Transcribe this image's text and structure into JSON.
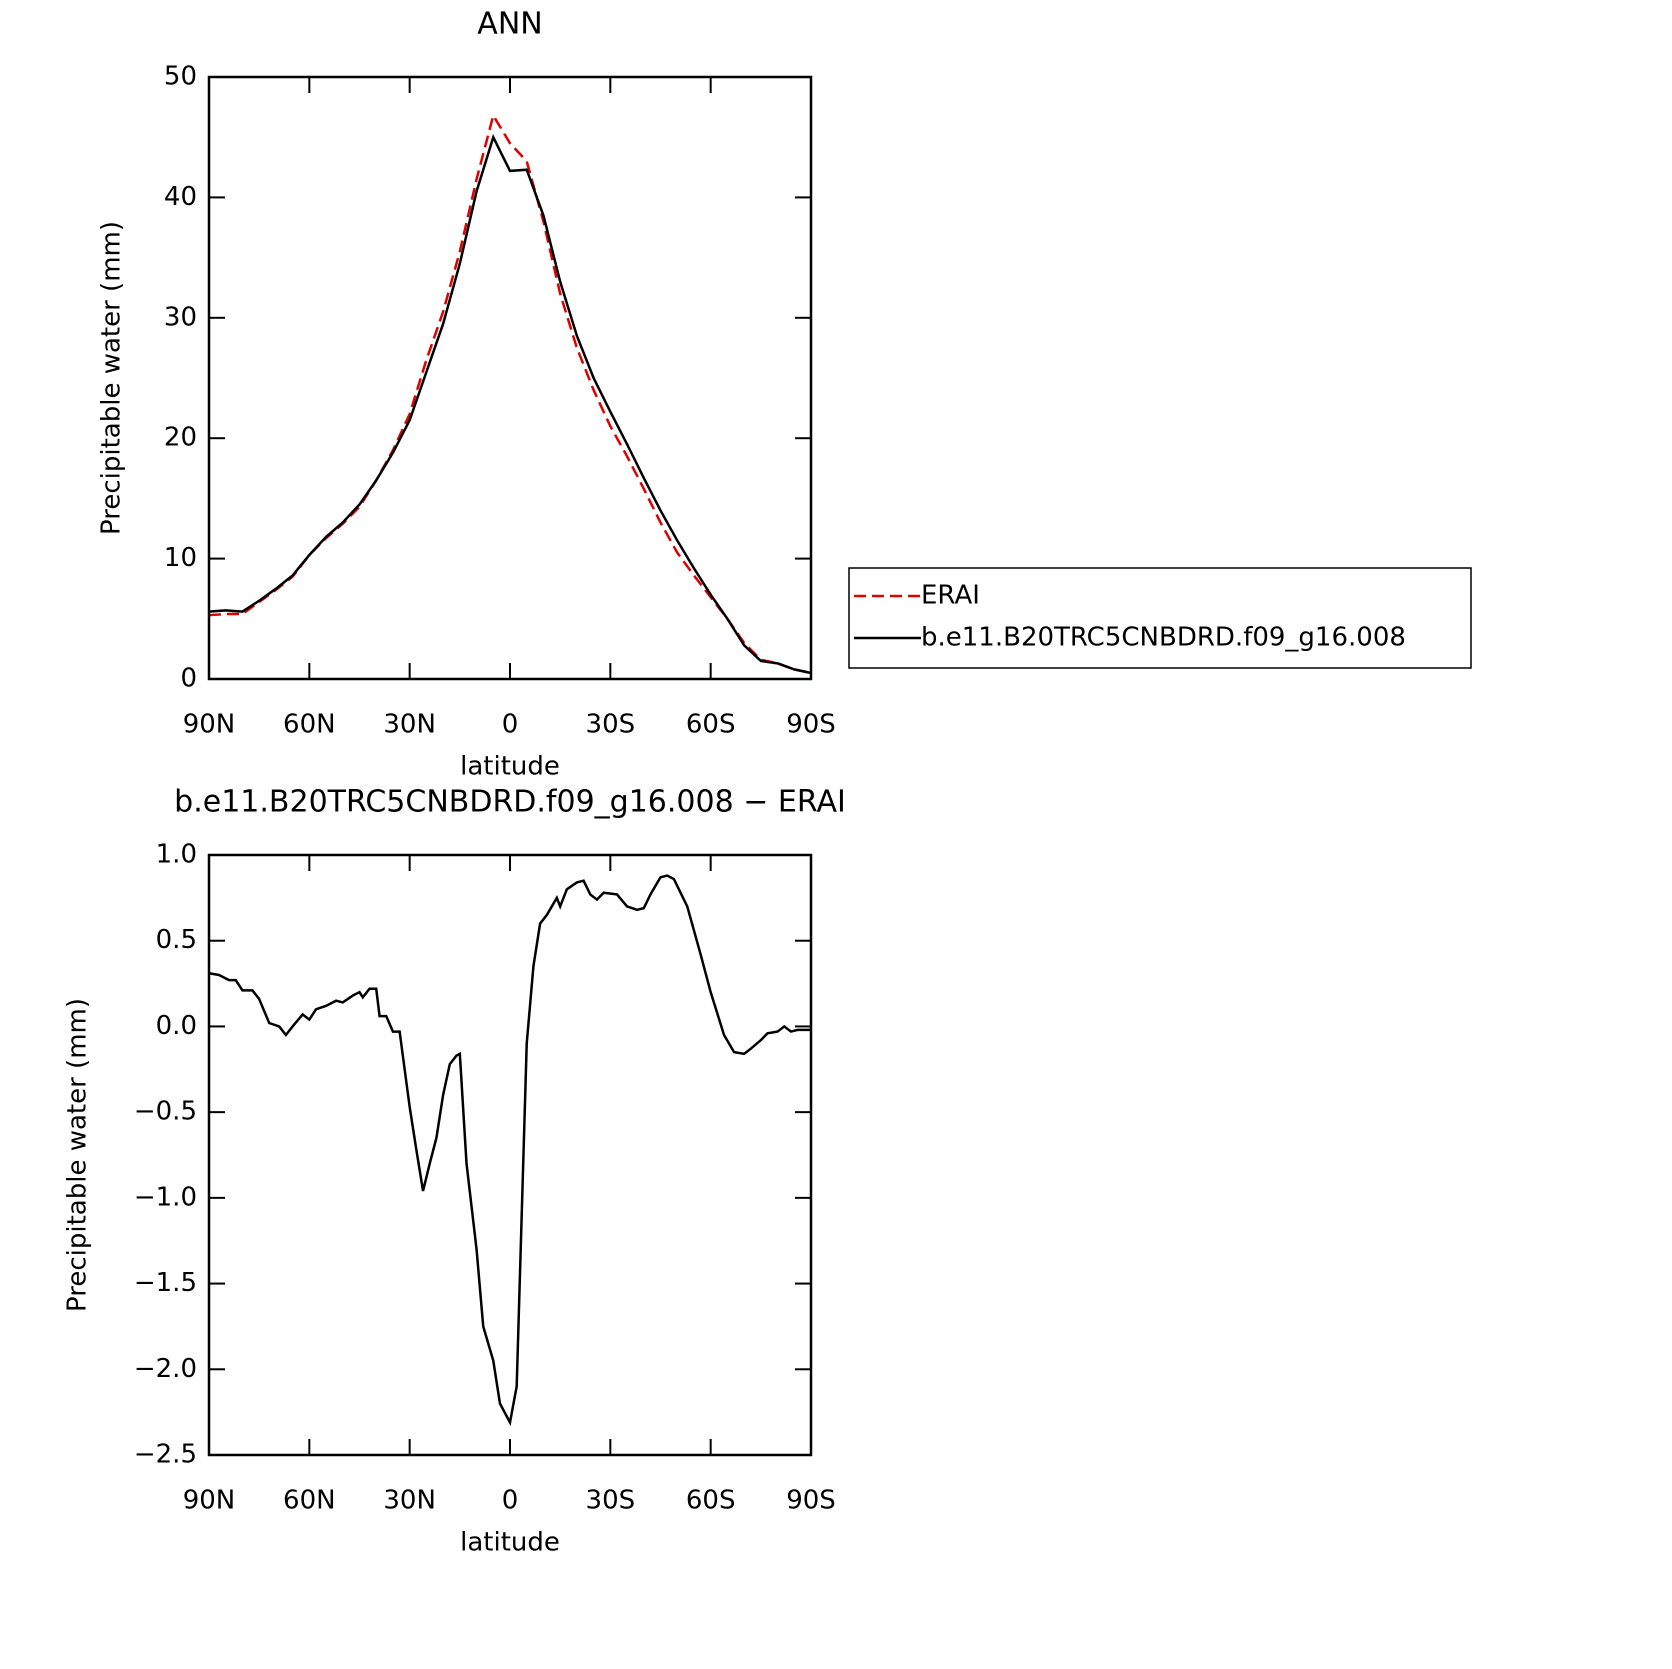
{
  "chart_data": [
    {
      "type": "line",
      "title": "ANN",
      "xlabel": "latitude",
      "ylabel": "Precipitable water (mm)",
      "x": [
        90,
        85,
        80,
        75,
        70,
        65,
        60,
        55,
        50,
        45,
        40,
        35,
        30,
        25,
        20,
        15,
        10,
        5,
        0,
        -5,
        -10,
        -15,
        -20,
        -25,
        -30,
        -35,
        -40,
        -45,
        -50,
        -55,
        -60,
        -65,
        -70,
        -75,
        -80,
        -85,
        -90
      ],
      "series": [
        {
          "name": "ERAI",
          "color": "#e00000",
          "dash": true,
          "values": [
            5.3,
            5.4,
            5.4,
            6.4,
            7.4,
            8.5,
            10.3,
            11.7,
            12.9,
            14.3,
            16.5,
            19.0,
            22.0,
            26.5,
            30.5,
            35.5,
            41.5,
            46.8,
            44.5,
            43.0,
            38.0,
            32.0,
            27.5,
            24.0,
            21.0,
            18.5,
            15.8,
            13.0,
            10.5,
            8.6,
            6.8,
            5.0,
            3.0,
            1.6,
            1.3,
            0.8,
            0.5
          ]
        },
        {
          "name": "b.e11.B20TRC5CNBDRD.f09_g16.008",
          "color": "#000000",
          "dash": false,
          "values": [
            5.6,
            5.7,
            5.6,
            6.5,
            7.5,
            8.6,
            10.3,
            11.8,
            13.0,
            14.5,
            16.5,
            18.8,
            21.5,
            25.5,
            29.5,
            34.5,
            40.5,
            45.0,
            42.2,
            42.3,
            38.5,
            33.0,
            28.5,
            25.0,
            22.2,
            19.5,
            16.7,
            14.0,
            11.5,
            9.2,
            7.0,
            5.0,
            2.8,
            1.5,
            1.3,
            0.8,
            0.5
          ]
        }
      ],
      "xlim": [
        90,
        -90
      ],
      "xticks": [
        {
          "value": 90,
          "label": "90N"
        },
        {
          "value": 60,
          "label": "60N"
        },
        {
          "value": 30,
          "label": "30N"
        },
        0,
        {
          "value": -30,
          "label": "30S"
        },
        {
          "value": -60,
          "label": "60S"
        },
        {
          "value": -90,
          "label": "90S"
        }
      ],
      "ylim": [
        0,
        50
      ],
      "yticks": [
        0,
        10,
        20,
        30,
        40,
        50
      ],
      "legend": "right"
    },
    {
      "type": "line",
      "title": "b.e11.B20TRC5CNBDRD.f09_g16.008 − ERAI",
      "xlabel": "latitude",
      "ylabel": "Precipitable water (mm)",
      "x": [
        90,
        87,
        84,
        82,
        80,
        77,
        75,
        72,
        69,
        67,
        65,
        62,
        60,
        58,
        55,
        52,
        50,
        47,
        45,
        44,
        42,
        40,
        39,
        37,
        35,
        33,
        30,
        28,
        26,
        24,
        22,
        20,
        18,
        16,
        15,
        13,
        10,
        8,
        5,
        3,
        0,
        -2,
        -5,
        -7,
        -9,
        -11,
        -14,
        -15,
        -17,
        -20,
        -22,
        -24,
        -26,
        -28,
        -32,
        -35,
        -38,
        -40,
        -42,
        -45,
        -47,
        -49,
        -53,
        -57,
        -60,
        -64,
        -67,
        -70,
        -72,
        -75,
        -77,
        -80,
        -82,
        -84,
        -86,
        -90
      ],
      "series": [
        {
          "color": "#000000",
          "dash": false,
          "values": [
            0.31,
            0.3,
            0.27,
            0.27,
            0.21,
            0.21,
            0.16,
            0.02,
            0.0,
            -0.05,
            0.0,
            0.07,
            0.04,
            0.1,
            0.12,
            0.15,
            0.14,
            0.18,
            0.2,
            0.17,
            0.22,
            0.22,
            0.06,
            0.06,
            -0.03,
            -0.03,
            -0.47,
            -0.72,
            -0.96,
            -0.8,
            -0.65,
            -0.4,
            -0.22,
            -0.17,
            -0.16,
            -0.8,
            -1.3,
            -1.75,
            -1.95,
            -2.2,
            -2.31,
            -2.1,
            -0.1,
            0.35,
            0.6,
            0.65,
            0.75,
            0.7,
            0.8,
            0.84,
            0.85,
            0.77,
            0.74,
            0.78,
            0.77,
            0.7,
            0.68,
            0.69,
            0.77,
            0.87,
            0.88,
            0.86,
            0.7,
            0.42,
            0.2,
            -0.05,
            -0.15,
            -0.16,
            -0.13,
            -0.08,
            -0.04,
            -0.03,
            0.0,
            -0.03,
            -0.02,
            -0.02
          ]
        }
      ],
      "xlim": [
        90,
        -90
      ],
      "xticks": [
        {
          "value": 90,
          "label": "90N"
        },
        {
          "value": 60,
          "label": "60N"
        },
        {
          "value": 30,
          "label": "30N"
        },
        0,
        {
          "value": -30,
          "label": "30S"
        },
        {
          "value": -60,
          "label": "60S"
        },
        {
          "value": -90,
          "label": "90S"
        }
      ],
      "ylim": [
        -2.5,
        1.0
      ],
      "yticks": [
        {
          "value": -2.5,
          "label": "−2.5"
        },
        {
          "value": -2.0,
          "label": "−2.0"
        },
        {
          "value": -1.5,
          "label": "−1.5"
        },
        {
          "value": -1.0,
          "label": "−1.0"
        },
        {
          "value": -0.5,
          "label": "−0.5"
        },
        {
          "value": 0.0,
          "label": "0.0"
        },
        {
          "value": 0.5,
          "label": "0.5"
        },
        {
          "value": 1.0,
          "label": "1.0"
        }
      ]
    }
  ]
}
